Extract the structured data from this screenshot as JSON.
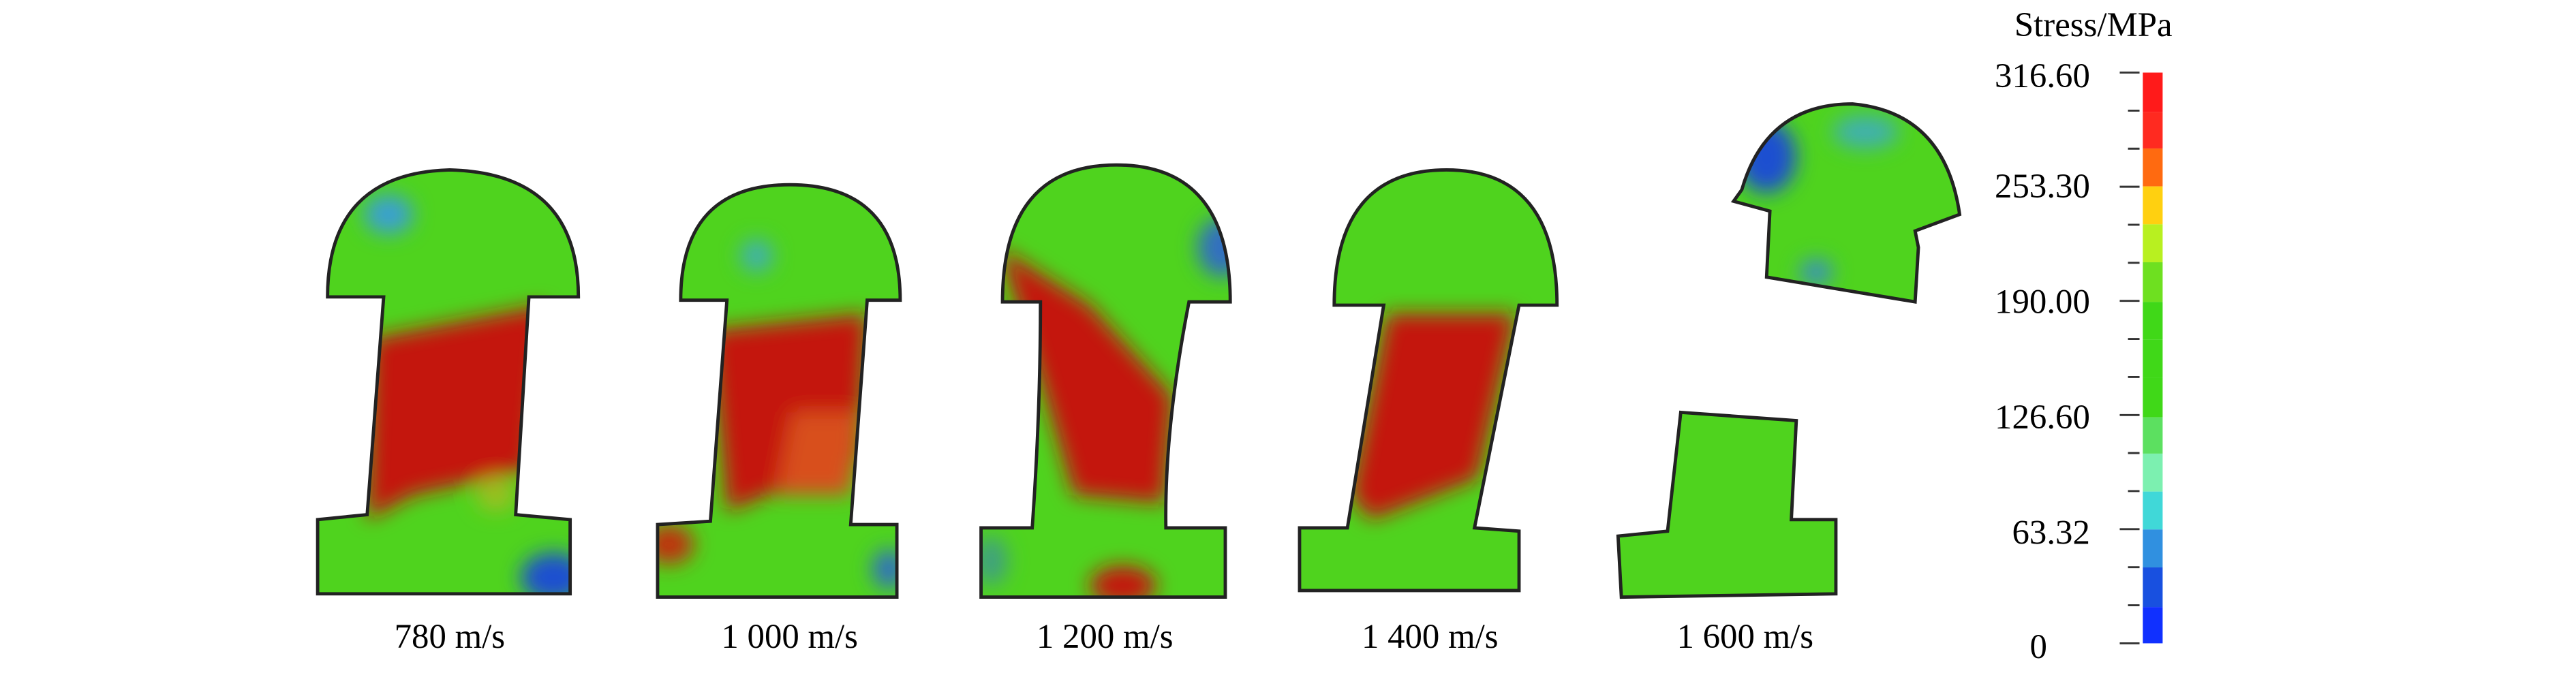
{
  "panels": [
    {
      "label": "780 m/s"
    },
    {
      "label": "1 000 m/s"
    },
    {
      "label": "1 200 m/s"
    },
    {
      "label": "1 400 m/s"
    },
    {
      "label": "1 600 m/s"
    }
  ],
  "colorbar": {
    "title": "Stress/MPa",
    "ticks": [
      "316.60",
      "253.30",
      "190.00",
      "126.60",
      "63.32",
      "0"
    ]
  }
}
